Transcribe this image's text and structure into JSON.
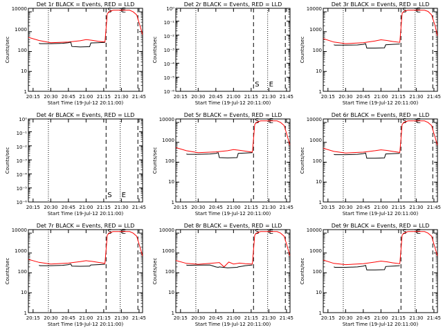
{
  "x_ticks": [
    "20:15",
    "20:30",
    "20:45",
    "21:00",
    "21:15",
    "21:30",
    "21:45"
  ],
  "x_label": "Start Time (19-Jul-12 20:11:00)",
  "y_label": "Counts/sec",
  "colors": {
    "events": "#000000",
    "lld": "#ff0000",
    "axes": "#000000",
    "background": "#ffffff"
  },
  "chart_data": [
    {
      "type": "line",
      "title": "Det 1r BLACK = Events, RED = LLD",
      "ylim": [
        1,
        15000
      ],
      "yscale": "log",
      "yticks": [
        "1",
        "10",
        "100",
        "1000",
        "10000"
      ],
      "xlim": [
        "20:11",
        "21:48"
      ],
      "markers": [
        {
          "time": "20:28",
          "style": "dotted"
        },
        {
          "time": "21:17",
          "style": "dashed",
          "label": "S"
        },
        {
          "time": "21:29",
          "style": "dotted",
          "label": "E"
        },
        {
          "time": "21:44",
          "style": "dashed"
        }
      ],
      "series": [
        {
          "name": "LLD",
          "color": "red",
          "x": [
            "20:11",
            "20:20",
            "20:30",
            "20:45",
            "20:55",
            "21:00",
            "21:05",
            "21:10",
            "21:16",
            "21:17",
            "21:18",
            "21:20",
            "21:23",
            "21:27",
            "21:32",
            "21:37",
            "21:40",
            "21:43",
            "21:46",
            "21:48"
          ],
          "values": [
            520,
            360,
            280,
            300,
            350,
            400,
            370,
            330,
            300,
            1500,
            8000,
            10500,
            12000,
            12000,
            12000,
            12000,
            10000,
            7000,
            1800,
            700
          ]
        },
        {
          "name": "Events",
          "color": "black",
          "x": [
            "20:20",
            "20:21",
            "20:30",
            "20:40",
            "20:45",
            "20:47",
            "20:48",
            "20:55",
            "21:03",
            "21:04",
            "21:10",
            "21:16"
          ],
          "values": [
            260,
            250,
            250,
            260,
            280,
            300,
            180,
            170,
            175,
            270,
            280,
            290
          ]
        }
      ]
    },
    {
      "type": "line",
      "title": "Det 2r BLACK = Events, RED = LLD",
      "ylim": [
        0.9,
        1.1e-06
      ],
      "yscale": "log",
      "yticks": [
        "10⁻⁶",
        "10⁻⁵",
        "10⁻⁴",
        "10⁻³",
        "10⁻²",
        "10⁻¹",
        "10⁰"
      ],
      "xlim": [
        "20:11",
        "21:48"
      ],
      "markers": [
        {
          "time": "20:28",
          "style": "dotted"
        },
        {
          "time": "21:17",
          "style": "dashed",
          "label": "S"
        },
        {
          "time": "21:29",
          "style": "dotted",
          "label": "E"
        },
        {
          "time": "21:44",
          "style": "dashed"
        }
      ],
      "series": []
    },
    {
      "type": "line",
      "title": "Det 3r BLACK = Events, RED = LLD",
      "ylim": [
        1,
        15000
      ],
      "yscale": "log",
      "yticks": [
        "1",
        "10",
        "100",
        "1000",
        "10000"
      ],
      "xlim": [
        "20:11",
        "21:48"
      ],
      "markers": [
        {
          "time": "20:28",
          "style": "dotted"
        },
        {
          "time": "21:17",
          "style": "dashed",
          "label": "S"
        },
        {
          "time": "21:29",
          "style": "dotted",
          "label": "E"
        },
        {
          "time": "21:44",
          "style": "dashed"
        }
      ],
      "series": [
        {
          "name": "LLD",
          "color": "red",
          "x": [
            "20:11",
            "20:20",
            "20:30",
            "20:45",
            "20:55",
            "21:00",
            "21:05",
            "21:10",
            "21:16",
            "21:17",
            "21:18",
            "21:20",
            "21:23",
            "21:27",
            "21:32",
            "21:37",
            "21:40",
            "21:43",
            "21:46",
            "21:48"
          ],
          "values": [
            450,
            300,
            250,
            280,
            340,
            390,
            360,
            320,
            290,
            1600,
            8500,
            11000,
            12000,
            12000,
            12000,
            12000,
            10500,
            7000,
            2000,
            600
          ]
        },
        {
          "name": "Events",
          "color": "black",
          "x": [
            "20:20",
            "20:21",
            "20:30",
            "20:40",
            "20:45",
            "20:47",
            "20:48",
            "20:55",
            "21:03",
            "21:04",
            "21:10",
            "21:16"
          ],
          "values": [
            220,
            210,
            210,
            215,
            230,
            250,
            150,
            150,
            155,
            220,
            230,
            240
          ]
        }
      ]
    },
    {
      "type": "line",
      "title": "Det 4r BLACK = Events, RED = LLD",
      "ylim": [
        0.9,
        1.1e-06
      ],
      "yscale": "log",
      "yticks": [
        "10⁻⁶",
        "10⁻⁵",
        "10⁻⁴",
        "10⁻³",
        "10⁻²",
        "10⁻¹",
        "10⁰"
      ],
      "xlim": [
        "20:11",
        "21:48"
      ],
      "markers": [
        {
          "time": "20:28",
          "style": "dotted"
        },
        {
          "time": "21:17",
          "style": "dashed",
          "label": "S"
        },
        {
          "time": "21:29",
          "style": "dotted",
          "label": "E"
        },
        {
          "time": "21:44",
          "style": "dashed"
        }
      ],
      "series": []
    },
    {
      "type": "line",
      "title": "Det 5r BLACK = Events, RED = LLD",
      "ylim": [
        1,
        15000
      ],
      "yscale": "log",
      "yticks": [
        "1",
        "10",
        "100",
        "1000",
        "10000"
      ],
      "xlim": [
        "20:11",
        "21:48"
      ],
      "markers": [
        {
          "time": "20:28",
          "style": "dotted"
        },
        {
          "time": "21:17",
          "style": "dashed",
          "label": "S"
        },
        {
          "time": "21:29",
          "style": "dotted",
          "label": "E"
        },
        {
          "time": "21:44",
          "style": "dashed"
        }
      ],
      "series": [
        {
          "name": "LLD",
          "color": "red",
          "x": [
            "20:11",
            "20:20",
            "20:30",
            "20:45",
            "20:55",
            "21:00",
            "21:05",
            "21:10",
            "21:16",
            "21:17",
            "21:18",
            "21:20",
            "21:23",
            "21:27",
            "21:32",
            "21:37",
            "21:40",
            "21:43",
            "21:46",
            "21:48"
          ],
          "values": [
            550,
            380,
            300,
            330,
            380,
            430,
            400,
            360,
            320,
            1500,
            8000,
            10500,
            12000,
            12000,
            12000,
            12000,
            10000,
            7000,
            1800,
            700
          ]
        },
        {
          "name": "Events",
          "color": "black",
          "x": [
            "20:20",
            "20:21",
            "20:30",
            "20:40",
            "20:45",
            "20:47",
            "20:48",
            "20:55",
            "21:03",
            "21:04",
            "21:10",
            "21:16"
          ],
          "values": [
            260,
            250,
            250,
            260,
            280,
            300,
            170,
            165,
            170,
            280,
            290,
            300
          ]
        }
      ]
    },
    {
      "type": "line",
      "title": "Det 6r BLACK = Events, RED = LLD",
      "ylim": [
        1,
        15000
      ],
      "yscale": "log",
      "yticks": [
        "1",
        "10",
        "100",
        "1000",
        "10000"
      ],
      "xlim": [
        "20:11",
        "21:48"
      ],
      "markers": [
        {
          "time": "20:28",
          "style": "dotted"
        },
        {
          "time": "21:17",
          "style": "dashed",
          "label": "S"
        },
        {
          "time": "21:29",
          "style": "dotted",
          "label": "E"
        },
        {
          "time": "21:44",
          "style": "dashed"
        }
      ],
      "series": [
        {
          "name": "LLD",
          "color": "red",
          "x": [
            "20:11",
            "20:20",
            "20:30",
            "20:45",
            "20:55",
            "21:00",
            "21:05",
            "21:10",
            "21:16",
            "21:17",
            "21:18",
            "21:20",
            "21:23",
            "21:27",
            "21:32",
            "21:37",
            "21:40",
            "21:43",
            "21:46",
            "21:48"
          ],
          "values": [
            500,
            350,
            290,
            320,
            380,
            420,
            390,
            350,
            310,
            1500,
            8000,
            10500,
            12000,
            12000,
            12000,
            12000,
            10000,
            7000,
            1800,
            700
          ]
        },
        {
          "name": "Events",
          "color": "black",
          "x": [
            "20:20",
            "20:21",
            "20:30",
            "20:40",
            "20:45",
            "20:47",
            "20:48",
            "20:55",
            "21:03",
            "21:04",
            "21:10",
            "21:16"
          ],
          "values": [
            250,
            240,
            240,
            250,
            270,
            290,
            160,
            160,
            165,
            260,
            270,
            280
          ]
        }
      ]
    },
    {
      "type": "line",
      "title": "Det 7r BLACK = Events, RED = LLD",
      "ylim": [
        1,
        15000
      ],
      "yscale": "log",
      "yticks": [
        "1",
        "10",
        "100",
        "1000",
        "10000"
      ],
      "xlim": [
        "20:11",
        "21:48"
      ],
      "markers": [
        {
          "time": "20:28",
          "style": "dotted"
        },
        {
          "time": "21:17",
          "style": "dashed",
          "label": "S"
        },
        {
          "time": "21:29",
          "style": "dotted",
          "label": "E"
        },
        {
          "time": "21:44",
          "style": "dashed"
        }
      ],
      "series": [
        {
          "name": "LLD",
          "color": "red",
          "x": [
            "20:11",
            "20:20",
            "20:30",
            "20:45",
            "20:55",
            "21:00",
            "21:05",
            "21:10",
            "21:16",
            "21:17",
            "21:18",
            "21:20",
            "21:23",
            "21:27",
            "21:32",
            "21:37",
            "21:40",
            "21:43",
            "21:46",
            "21:48"
          ],
          "values": [
            480,
            340,
            280,
            310,
            370,
            410,
            380,
            340,
            300,
            1500,
            8000,
            10500,
            12000,
            12000,
            12000,
            12000,
            10000,
            7000,
            1800,
            700
          ]
        },
        {
          "name": "Events",
          "color": "black",
          "x": [
            "20:20",
            "20:21",
            "20:30",
            "20:40",
            "20:45",
            "20:47",
            "20:48",
            "20:55",
            "21:03",
            "21:04",
            "21:10",
            "21:16"
          ],
          "values": [
            240,
            230,
            230,
            240,
            260,
            280,
            220,
            215,
            220,
            250,
            260,
            270
          ]
        }
      ]
    },
    {
      "type": "line",
      "title": "Det 8r BLACK = Events, RED = LLD",
      "ylim": [
        1,
        15000
      ],
      "yscale": "log",
      "yticks": [
        "1",
        "10",
        "100",
        "1000",
        "10000"
      ],
      "xlim": [
        "20:11",
        "21:48"
      ],
      "markers": [
        {
          "time": "20:28",
          "style": "dotted"
        },
        {
          "time": "21:17",
          "style": "dashed",
          "label": "S"
        },
        {
          "time": "21:29",
          "style": "dotted",
          "label": "E"
        },
        {
          "time": "21:44",
          "style": "dashed"
        }
      ],
      "series": [
        {
          "name": "LLD",
          "color": "red",
          "x": [
            "20:11",
            "20:20",
            "20:30",
            "20:40",
            "20:48",
            "20:52",
            "20:56",
            "21:00",
            "21:05",
            "21:10",
            "21:16",
            "21:17",
            "21:18",
            "21:20",
            "21:23",
            "21:27",
            "21:32",
            "21:37",
            "21:40",
            "21:43",
            "21:46",
            "21:48"
          ],
          "values": [
            420,
            300,
            270,
            300,
            330,
            200,
            350,
            280,
            310,
            290,
            280,
            1500,
            8000,
            10500,
            12000,
            12000,
            12000,
            12000,
            10000,
            7000,
            1800,
            700
          ]
        },
        {
          "name": "Events",
          "color": "black",
          "x": [
            "20:20",
            "20:21",
            "20:30",
            "20:40",
            "20:45",
            "20:47",
            "20:48",
            "20:55",
            "21:03",
            "21:04",
            "21:10",
            "21:16"
          ],
          "values": [
            250,
            240,
            245,
            250,
            200,
            190,
            200,
            180,
            190,
            200,
            230,
            250
          ]
        }
      ]
    },
    {
      "type": "line",
      "title": "Det 9r BLACK = Events, RED = LLD",
      "ylim": [
        1,
        15000
      ],
      "yscale": "log",
      "yticks": [
        "1",
        "10",
        "100",
        "1000",
        "10000"
      ],
      "xlim": [
        "20:11",
        "21:48"
      ],
      "markers": [
        {
          "time": "20:28",
          "style": "dotted"
        },
        {
          "time": "21:17",
          "style": "dashed",
          "label": "S"
        },
        {
          "time": "21:29",
          "style": "dotted",
          "label": "E"
        },
        {
          "time": "21:44",
          "style": "dashed"
        }
      ],
      "series": [
        {
          "name": "LLD",
          "color": "red",
          "x": [
            "20:11",
            "20:20",
            "20:30",
            "20:45",
            "20:55",
            "21:00",
            "21:05",
            "21:10",
            "21:16",
            "21:17",
            "21:18",
            "21:20",
            "21:23",
            "21:27",
            "21:32",
            "21:37",
            "21:40",
            "21:43",
            "21:46",
            "21:48"
          ],
          "values": [
            440,
            300,
            260,
            290,
            350,
            390,
            360,
            320,
            290,
            1500,
            8000,
            10500,
            12000,
            12000,
            12000,
            12000,
            10000,
            7000,
            1800,
            700
          ]
        },
        {
          "name": "Events",
          "color": "black",
          "x": [
            "20:20",
            "20:21",
            "20:30",
            "20:40",
            "20:45",
            "20:47",
            "20:48",
            "20:55",
            "21:03",
            "21:04",
            "21:10",
            "21:16"
          ],
          "values": [
            200,
            190,
            190,
            200,
            220,
            240,
            140,
            140,
            145,
            210,
            220,
            230
          ]
        }
      ]
    }
  ]
}
